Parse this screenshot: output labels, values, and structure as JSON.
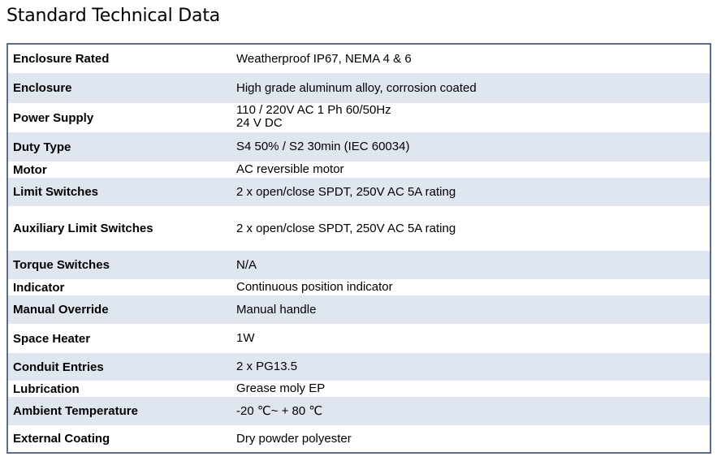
{
  "title": "Standard Technical Data",
  "rows": [
    {
      "label": "Enclosure Rated",
      "value": "Weatherproof IP67, NEMA 4 & 6"
    },
    {
      "label": "Enclosure",
      "value": "High grade aluminum  alloy, corrosion coated"
    },
    {
      "label": "Power Supply",
      "value": "110 / 220V AC 1 Ph 60/50Hz\n24 V DC"
    },
    {
      "label": "Duty Type",
      "value": "S4 50% / S2 30min (IEC 60034)"
    },
    {
      "label": "Motor",
      "value": "AC reversible motor"
    },
    {
      "label": "Limit  Switches",
      "value": "2 x  open/close SPDT, 250V AC 5A rating"
    },
    {
      "label": "Auxiliary  Limit  Switches",
      "value": "2 x  open/close SPDT, 250V AC 5A rating"
    },
    {
      "label": "Torque Switches",
      "value": "N/A"
    },
    {
      "label": "Indicator",
      "value": "Continuous  position indicator"
    },
    {
      "label": "Manual Override",
      "value": "Manual  handle"
    },
    {
      "label": "Space Heater",
      "value": "1W"
    },
    {
      "label": "Conduit Entries",
      "value": "2 x  PG13.5"
    },
    {
      "label": "Lubrication",
      "value": "Grease moly  EP"
    },
    {
      "label": "Ambient Temperature",
      "value": "-20  ℃~ + 80  ℃"
    },
    {
      "label": "External Coating",
      "value": "Dry powder polyester"
    }
  ],
  "colors": {
    "border": "#5a6e8e",
    "alt_row_background": "#dfe6f0"
  }
}
